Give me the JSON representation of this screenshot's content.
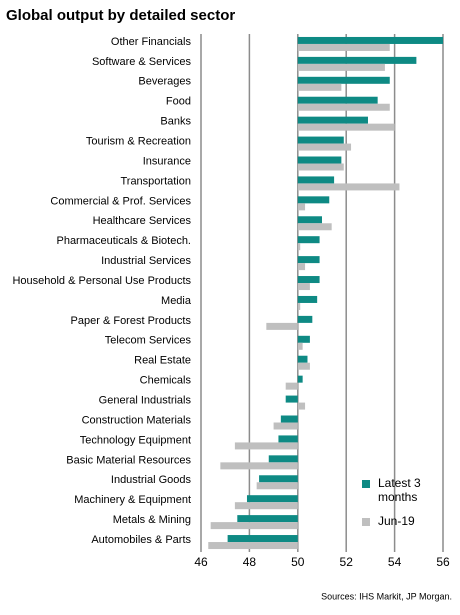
{
  "chart_data": {
    "type": "bar",
    "orientation": "horizontal",
    "title": "Global output by detailed sector",
    "source": "Sources: IHS Markit, JP Morgan.",
    "categories": [
      "Other Financials",
      "Software & Services",
      "Beverages",
      "Food",
      "Banks",
      "Tourism & Recreation",
      "Insurance",
      "Transportation",
      "Commercial & Prof. Services",
      "Healthcare Services",
      "Pharmaceuticals & Biotech.",
      "Industrial Services",
      "Household & Personal Use Products",
      "Media",
      "Paper & Forest Products",
      "Telecom Services",
      "Real Estate",
      "Chemicals",
      "General Industrials",
      "Construction Materials",
      "Technology Equipment",
      "Basic Material Resources",
      "Industrial Goods",
      "Machinery & Equipment",
      "Metals & Mining",
      "Automobiles & Parts"
    ],
    "series": [
      {
        "name": "Latest 3 months",
        "color": "#0e8a84",
        "values": [
          56.0,
          54.9,
          53.8,
          53.3,
          52.9,
          51.9,
          51.8,
          51.5,
          51.3,
          51.0,
          50.9,
          50.9,
          50.9,
          50.8,
          50.6,
          50.5,
          50.4,
          50.2,
          49.5,
          49.3,
          49.2,
          48.8,
          48.4,
          47.9,
          47.5,
          47.1
        ]
      },
      {
        "name": "Jun-19",
        "color": "#bfbfbf",
        "values": [
          53.8,
          53.6,
          51.8,
          53.8,
          54.0,
          52.2,
          51.9,
          54.2,
          50.3,
          51.4,
          50.1,
          50.3,
          50.5,
          50.1,
          48.7,
          50.2,
          50.5,
          49.5,
          50.3,
          49.0,
          47.4,
          46.8,
          48.3,
          47.4,
          46.4,
          46.3
        ]
      }
    ],
    "xlim": [
      46,
      56
    ],
    "xticks": [
      46,
      48,
      50,
      52,
      54,
      56
    ],
    "baseline": 50,
    "grid": true,
    "legend": "bottom-right"
  }
}
